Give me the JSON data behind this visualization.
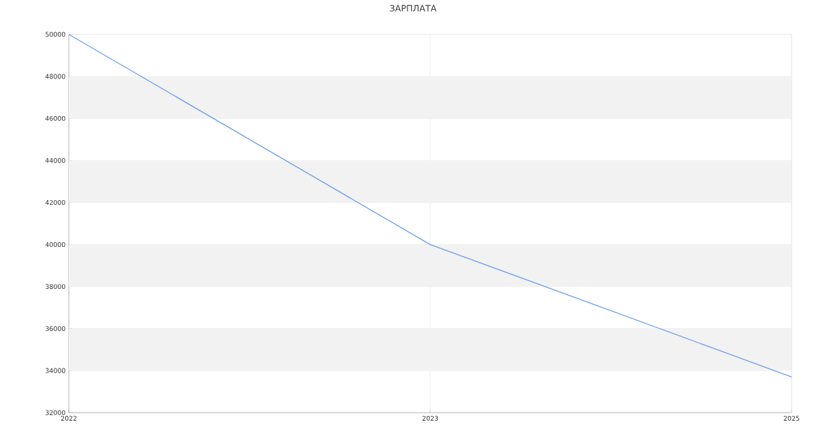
{
  "chart_data": {
    "type": "line",
    "title": "ЗАРПЛАТА",
    "categories": [
      "2022",
      "2023",
      "2025"
    ],
    "series": [
      {
        "color": "#6d9eeb",
        "values": [
          50000,
          40000,
          33700
        ]
      }
    ],
    "ylim": [
      32000,
      50000
    ],
    "yticks": [
      32000,
      34000,
      36000,
      38000,
      40000,
      42000,
      44000,
      46000,
      48000,
      50000
    ],
    "grid": true,
    "marker": "none",
    "line_style": "solid"
  }
}
